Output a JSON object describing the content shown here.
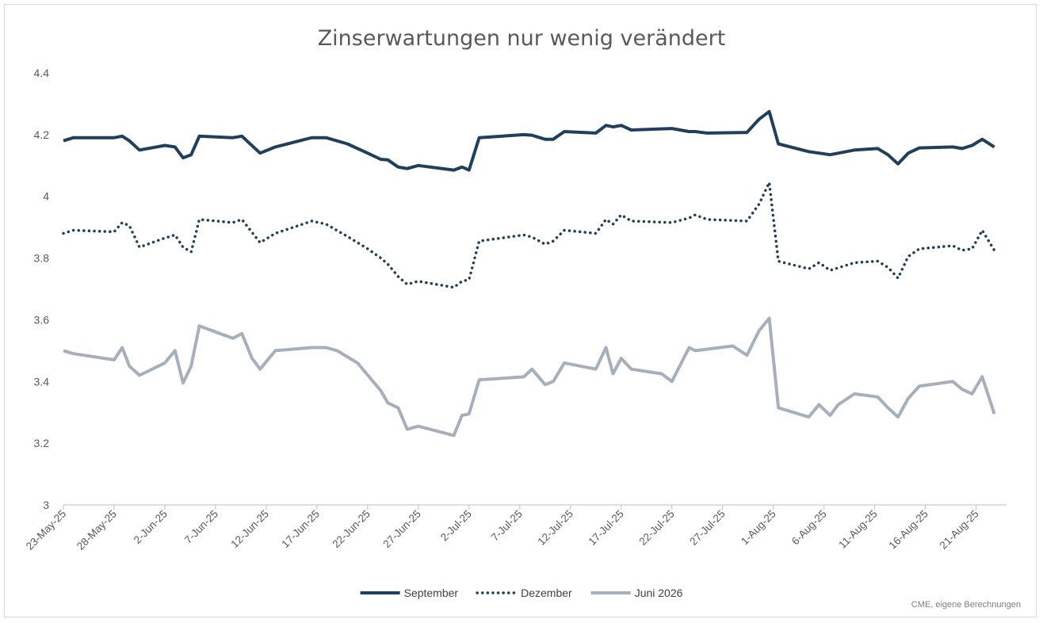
{
  "chart_data": {
    "type": "line",
    "title": "Zinserwartungen nur wenig verändert",
    "source": "CME, eigene Berechnungen",
    "ylim": [
      3,
      4.4
    ],
    "yticks": [
      "3",
      "3.2",
      "3.4",
      "3.6",
      "3.8",
      "4",
      "4.2",
      "4.4"
    ],
    "xlim": [
      "2025-05-23",
      "2025-08-24"
    ],
    "xticks": [
      "23-May-25",
      "28-May-25",
      "2-Jun-25",
      "7-Jun-25",
      "12-Jun-25",
      "17-Jun-25",
      "22-Jun-25",
      "27-Jun-25",
      "2-Jul-25",
      "7-Jul-25",
      "12-Jul-25",
      "17-Jul-25",
      "22-Jul-25",
      "27-Jul-25",
      "1-Aug-25",
      "6-Aug-25",
      "11-Aug-25",
      "16-Aug-25",
      "21-Aug-25"
    ],
    "legend_position": "bottom",
    "grid": false,
    "series": [
      {
        "name": "September",
        "color": "#1f3f5a",
        "style": "solid",
        "points": [
          [
            "2025-05-23",
            4.18
          ],
          [
            "2025-05-24",
            4.19
          ],
          [
            "2025-05-28",
            4.19
          ],
          [
            "2025-05-28.8",
            4.195
          ],
          [
            "2025-05-29.5",
            4.18
          ],
          [
            "2025-05-30.5",
            4.15
          ],
          [
            "2025-06-02",
            4.165
          ],
          [
            "2025-06-03",
            4.16
          ],
          [
            "2025-06-03.8",
            4.125
          ],
          [
            "2025-06-04.6",
            4.135
          ],
          [
            "2025-06-05.4",
            4.195
          ],
          [
            "2025-06-08.7",
            4.19
          ],
          [
            "2025-06-09.6",
            4.195
          ],
          [
            "2025-06-11.4",
            4.14
          ],
          [
            "2025-06-12.9",
            4.16
          ],
          [
            "2025-06-16.5",
            4.19
          ],
          [
            "2025-06-17.9",
            4.19
          ],
          [
            "2025-06-20",
            4.17
          ],
          [
            "2025-06-22",
            4.14
          ],
          [
            "2025-06-23.3",
            4.12
          ],
          [
            "2025-06-24",
            4.118
          ],
          [
            "2025-06-25",
            4.095
          ],
          [
            "2025-06-25.9",
            4.09
          ],
          [
            "2025-06-27",
            4.1
          ],
          [
            "2025-06-30.5",
            4.085
          ],
          [
            "2025-07-01.3",
            4.095
          ],
          [
            "2025-07-02",
            4.085
          ],
          [
            "2025-07-03",
            4.19
          ],
          [
            "2025-07-07.4",
            4.2
          ],
          [
            "2025-07-08.2",
            4.198
          ],
          [
            "2025-07-09.5",
            4.185
          ],
          [
            "2025-07-10.3",
            4.185
          ],
          [
            "2025-07-11.4",
            4.21
          ],
          [
            "2025-07-14.5",
            4.205
          ],
          [
            "2025-07-15.5",
            4.23
          ],
          [
            "2025-07-16.2",
            4.225
          ],
          [
            "2025-07-17",
            4.23
          ],
          [
            "2025-07-18",
            4.215
          ],
          [
            "2025-07-22",
            4.22
          ],
          [
            "2025-07-23.7",
            4.21
          ],
          [
            "2025-07-24.3",
            4.21
          ],
          [
            "2025-07-25.5",
            4.205
          ],
          [
            "2025-07-29.4",
            4.207
          ],
          [
            "2025-07-30.6",
            4.25
          ],
          [
            "2025-07-31.6",
            4.275
          ],
          [
            "2025-08-01.5",
            4.17
          ],
          [
            "2025-08-04.5",
            4.145
          ],
          [
            "2025-08-06.6",
            4.135
          ],
          [
            "2025-08-09",
            4.15
          ],
          [
            "2025-08-11.3",
            4.155
          ],
          [
            "2025-08-12.3",
            4.135
          ],
          [
            "2025-08-13.3",
            4.105
          ],
          [
            "2025-08-14.3",
            4.14
          ],
          [
            "2025-08-15.4",
            4.157
          ],
          [
            "2025-08-18.7",
            4.16
          ],
          [
            "2025-08-19.6",
            4.155
          ],
          [
            "2025-08-20.6",
            4.165
          ],
          [
            "2025-08-21.6",
            4.185
          ],
          [
            "2025-08-22.8",
            4.16
          ]
        ]
      },
      {
        "name": "Dezember",
        "color": "#1f3f5a",
        "style": "dotted",
        "points": [
          [
            "2025-05-23",
            3.88
          ],
          [
            "2025-05-24",
            3.89
          ],
          [
            "2025-05-28",
            3.885
          ],
          [
            "2025-05-28.8",
            3.915
          ],
          [
            "2025-05-29.5",
            3.905
          ],
          [
            "2025-05-30.5",
            3.835
          ],
          [
            "2025-06-02",
            3.865
          ],
          [
            "2025-06-03",
            3.875
          ],
          [
            "2025-06-03.8",
            3.835
          ],
          [
            "2025-06-04.6",
            3.82
          ],
          [
            "2025-06-05.4",
            3.925
          ],
          [
            "2025-06-08.7",
            3.915
          ],
          [
            "2025-06-09.6",
            3.925
          ],
          [
            "2025-06-11.4",
            3.85
          ],
          [
            "2025-06-12.9",
            3.88
          ],
          [
            "2025-06-16.5",
            3.92
          ],
          [
            "2025-06-17.9",
            3.91
          ],
          [
            "2025-06-20",
            3.87
          ],
          [
            "2025-06-22",
            3.83
          ],
          [
            "2025-06-23.3",
            3.8
          ],
          [
            "2025-06-24",
            3.78
          ],
          [
            "2025-06-25",
            3.74
          ],
          [
            "2025-06-25.9",
            3.715
          ],
          [
            "2025-06-27",
            3.725
          ],
          [
            "2025-06-30.5",
            3.705
          ],
          [
            "2025-07-01.3",
            3.725
          ],
          [
            "2025-07-02",
            3.73
          ],
          [
            "2025-07-03",
            3.855
          ],
          [
            "2025-07-07.4",
            3.875
          ],
          [
            "2025-07-08.2",
            3.868
          ],
          [
            "2025-07-09.5",
            3.845
          ],
          [
            "2025-07-10.3",
            3.855
          ],
          [
            "2025-07-11.4",
            3.89
          ],
          [
            "2025-07-14.5",
            3.88
          ],
          [
            "2025-07-15.5",
            3.925
          ],
          [
            "2025-07-16.2",
            3.91
          ],
          [
            "2025-07-17",
            3.94
          ],
          [
            "2025-07-18",
            3.92
          ],
          [
            "2025-07-22",
            3.915
          ],
          [
            "2025-07-23.7",
            3.93
          ],
          [
            "2025-07-24.3",
            3.94
          ],
          [
            "2025-07-25.5",
            3.925
          ],
          [
            "2025-07-29.4",
            3.92
          ],
          [
            "2025-07-30.6",
            3.975
          ],
          [
            "2025-07-31.6",
            4.045
          ],
          [
            "2025-08-01.5",
            3.79
          ],
          [
            "2025-08-04.5",
            3.765
          ],
          [
            "2025-08-05.5",
            3.785
          ],
          [
            "2025-08-06.6",
            3.76
          ],
          [
            "2025-08-09",
            3.785
          ],
          [
            "2025-08-11.3",
            3.79
          ],
          [
            "2025-08-12.3",
            3.77
          ],
          [
            "2025-08-13.3",
            3.735
          ],
          [
            "2025-08-14.3",
            3.805
          ],
          [
            "2025-08-15.4",
            3.83
          ],
          [
            "2025-08-18.7",
            3.84
          ],
          [
            "2025-08-19.6",
            3.825
          ],
          [
            "2025-08-20.6",
            3.83
          ],
          [
            "2025-08-21.6",
            3.89
          ],
          [
            "2025-08-22.8",
            3.825
          ]
        ]
      },
      {
        "name": "Juni 2026",
        "color": "#a6b0bc",
        "style": "solid",
        "points": [
          [
            "2025-05-23",
            3.5
          ],
          [
            "2025-05-24",
            3.49
          ],
          [
            "2025-05-28",
            3.47
          ],
          [
            "2025-05-28.8",
            3.51
          ],
          [
            "2025-05-29.5",
            3.45
          ],
          [
            "2025-05-30.5",
            3.42
          ],
          [
            "2025-06-02",
            3.46
          ],
          [
            "2025-06-03",
            3.5
          ],
          [
            "2025-06-03.8",
            3.395
          ],
          [
            "2025-06-04.6",
            3.45
          ],
          [
            "2025-06-05.4",
            3.58
          ],
          [
            "2025-06-08.7",
            3.54
          ],
          [
            "2025-06-09.6",
            3.555
          ],
          [
            "2025-06-10.6",
            3.475
          ],
          [
            "2025-06-11.4",
            3.44
          ],
          [
            "2025-06-12.9",
            3.5
          ],
          [
            "2025-06-16.5",
            3.51
          ],
          [
            "2025-06-17.9",
            3.51
          ],
          [
            "2025-06-19",
            3.5
          ],
          [
            "2025-06-21",
            3.46
          ],
          [
            "2025-06-23.3",
            3.37
          ],
          [
            "2025-06-24",
            3.33
          ],
          [
            "2025-06-25",
            3.315
          ],
          [
            "2025-06-25.9",
            3.245
          ],
          [
            "2025-06-27",
            3.255
          ],
          [
            "2025-06-30.5",
            3.225
          ],
          [
            "2025-07-01.3",
            3.29
          ],
          [
            "2025-07-02",
            3.295
          ],
          [
            "2025-07-03",
            3.405
          ],
          [
            "2025-07-07.4",
            3.415
          ],
          [
            "2025-07-08.2",
            3.44
          ],
          [
            "2025-07-09.5",
            3.39
          ],
          [
            "2025-07-10.3",
            3.4
          ],
          [
            "2025-07-11.4",
            3.46
          ],
          [
            "2025-07-14.5",
            3.44
          ],
          [
            "2025-07-15.5",
            3.51
          ],
          [
            "2025-07-16.2",
            3.425
          ],
          [
            "2025-07-17",
            3.475
          ],
          [
            "2025-07-18",
            3.44
          ],
          [
            "2025-07-21",
            3.425
          ],
          [
            "2025-07-22",
            3.4
          ],
          [
            "2025-07-23.7",
            3.51
          ],
          [
            "2025-07-24.3",
            3.5
          ],
          [
            "2025-07-28",
            3.515
          ],
          [
            "2025-07-29.4",
            3.485
          ],
          [
            "2025-07-30.6",
            3.565
          ],
          [
            "2025-07-31.6",
            3.605
          ],
          [
            "2025-08-01.5",
            3.315
          ],
          [
            "2025-08-04.5",
            3.285
          ],
          [
            "2025-08-05.5",
            3.325
          ],
          [
            "2025-08-06.6",
            3.29
          ],
          [
            "2025-08-07.4",
            3.325
          ],
          [
            "2025-08-09",
            3.36
          ],
          [
            "2025-08-11.3",
            3.35
          ],
          [
            "2025-08-12.3",
            3.315
          ],
          [
            "2025-08-13.3",
            3.285
          ],
          [
            "2025-08-14.3",
            3.345
          ],
          [
            "2025-08-15.4",
            3.385
          ],
          [
            "2025-08-18.7",
            3.4
          ],
          [
            "2025-08-19.6",
            3.375
          ],
          [
            "2025-08-20.6",
            3.36
          ],
          [
            "2025-08-21.6",
            3.415
          ],
          [
            "2025-08-22.8",
            3.295
          ]
        ]
      }
    ]
  }
}
